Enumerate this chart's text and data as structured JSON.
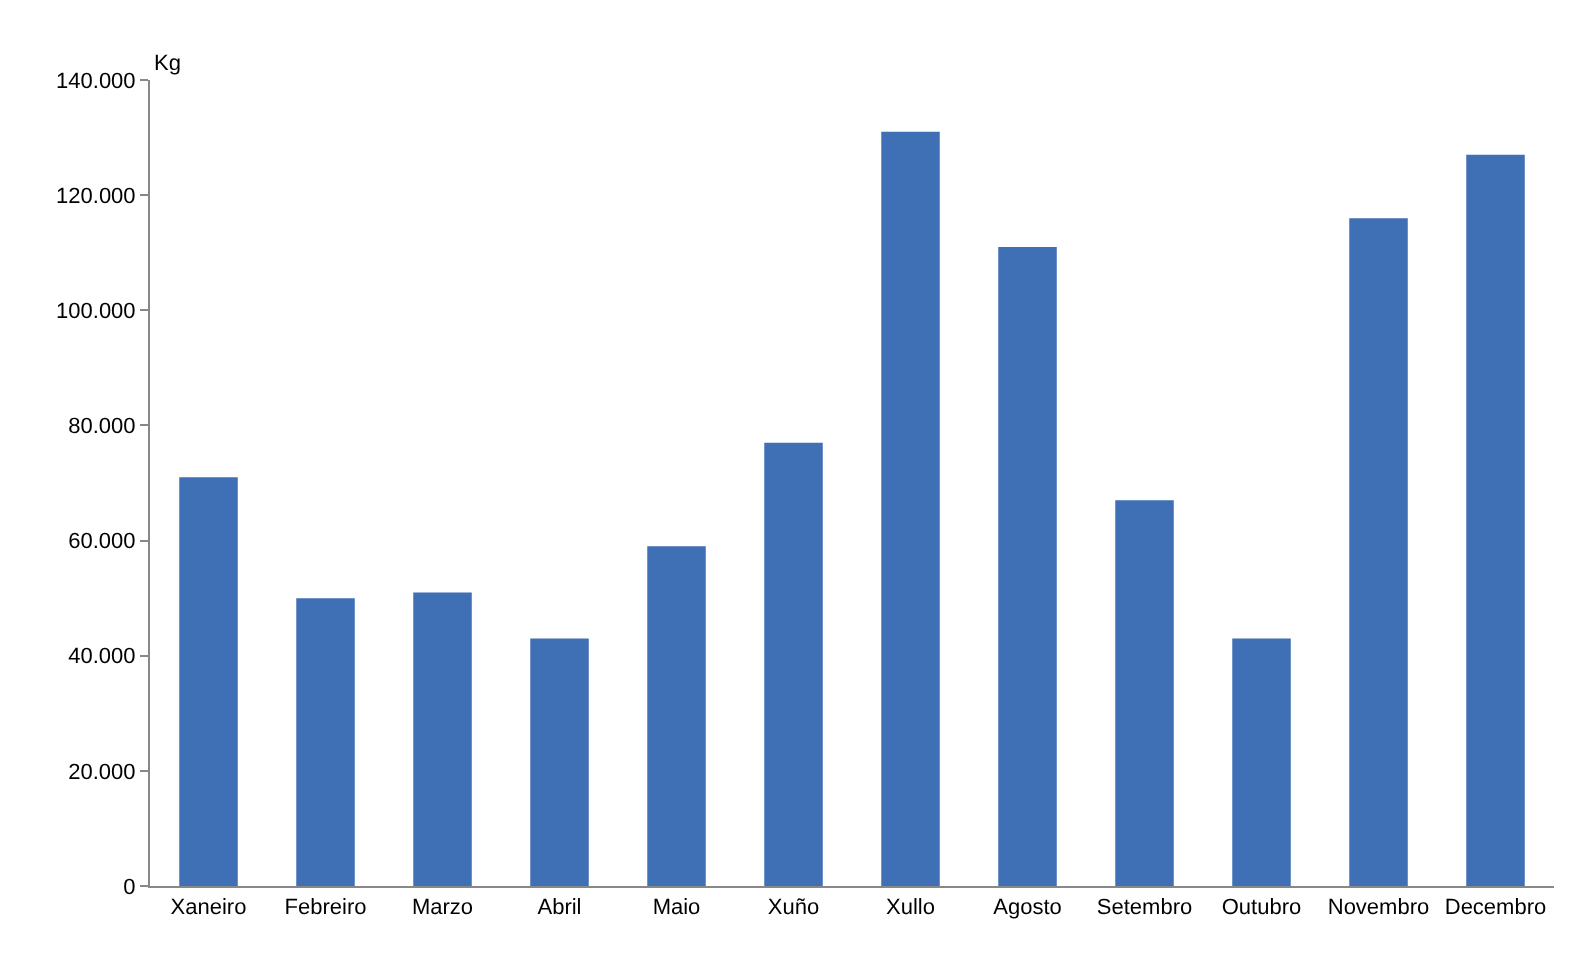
{
  "chart_data": {
    "type": "bar",
    "ylabel": "Kg",
    "categories": [
      "Xaneiro",
      "Febreiro",
      "Marzo",
      "Abril",
      "Maio",
      "Xuño",
      "Xullo",
      "Agosto",
      "Setembro",
      "Outubro",
      "Novembro",
      "Decembro"
    ],
    "values": [
      71000,
      50000,
      51000,
      43000,
      59000,
      77000,
      131000,
      111000,
      67000,
      43000,
      116000,
      127000
    ],
    "color": "#3f6fb5",
    "ylim": [
      0,
      140000
    ],
    "yticks": [
      {
        "value": 0,
        "label": "0"
      },
      {
        "value": 20000,
        "label": "20.000"
      },
      {
        "value": 40000,
        "label": "40.000"
      },
      {
        "value": 60000,
        "label": "60.000"
      },
      {
        "value": 80000,
        "label": "80.000"
      },
      {
        "value": 100000,
        "label": "100.000"
      },
      {
        "value": 120000,
        "label": "120.000"
      },
      {
        "value": 140000,
        "label": "140.000"
      }
    ]
  }
}
